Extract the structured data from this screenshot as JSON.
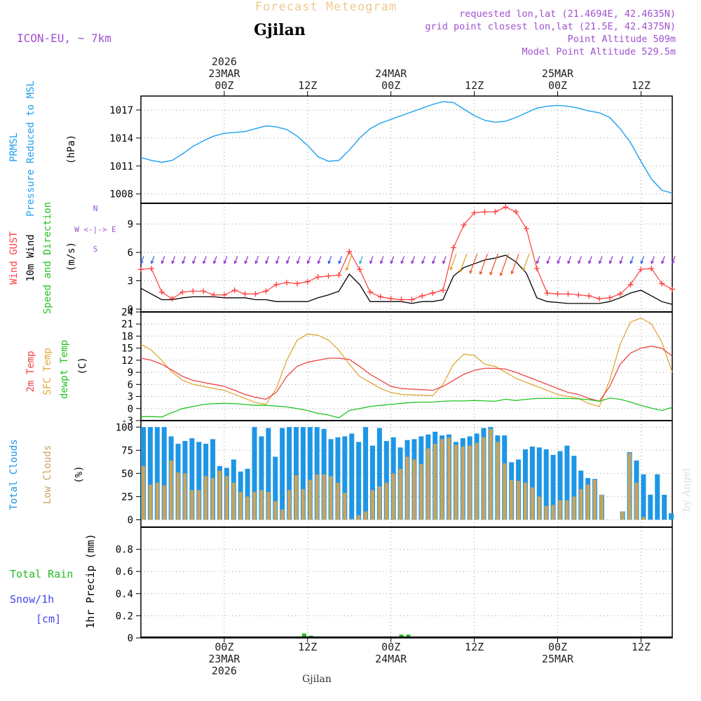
{
  "header": {
    "supertitle": "Forecast Meteogram",
    "location": "Gjilan",
    "model": "ICON-EU, ~ 7km",
    "requested": "requested lon,lat (21.4694E, 42.4635N)",
    "grid": "grid point closest lon,lat (21.5E, 42.4375N)",
    "point_alt": "Point Altitude 509m",
    "model_alt": "Model Point Altitude 529.5m"
  },
  "time_axis": {
    "start": "2026-03-22T12Z",
    "end": "2026-03-25T15Z",
    "top": [
      {
        "hour": 12,
        "lines": [
          "2026",
          "23MAR",
          "00Z"
        ]
      },
      {
        "hour": 24,
        "lines": [
          "12Z"
        ]
      },
      {
        "hour": 36,
        "lines": [
          "24MAR",
          "00Z"
        ]
      },
      {
        "hour": 48,
        "lines": [
          "12Z"
        ]
      },
      {
        "hour": 60,
        "lines": [
          "25MAR",
          "00Z"
        ]
      },
      {
        "hour": 72,
        "lines": [
          "12Z"
        ]
      }
    ],
    "bottom": [
      {
        "hour": 12,
        "lines": [
          "00Z",
          "23MAR",
          "2026"
        ]
      },
      {
        "hour": 24,
        "lines": [
          "12Z"
        ]
      },
      {
        "hour": 36,
        "lines": [
          "00Z",
          "24MAR"
        ]
      },
      {
        "hour": 48,
        "lines": [
          "12Z"
        ]
      },
      {
        "hour": 60,
        "lines": [
          "00Z",
          "25MAR"
        ]
      },
      {
        "hour": 72,
        "lines": [
          "12Z"
        ]
      }
    ],
    "footer": "Gjilan",
    "credit": "by Angel"
  },
  "colors": {
    "pressure": "#1ea0f0",
    "gust": "#ff3c3c",
    "wind": "#000000",
    "temp": "#ee4444",
    "sfc": "#e0a838",
    "dewpt": "#22c422",
    "total_clouds": "#1e96e6",
    "low_clouds": "#c9a45c",
    "rain": "#22bb22",
    "snow": "#4444ee",
    "meta": "#a050d0"
  },
  "panels": {
    "pressure": {
      "labels": [
        "PRMSL",
        "Pressure Reduced to MSL",
        "(hPa)"
      ]
    },
    "wind": {
      "labels": [
        "Wind GUST",
        "10m Wind",
        "Speed and Direction",
        "(m/s)"
      ],
      "compass": [
        "N",
        "W <-|-> E",
        "S"
      ]
    },
    "temp": {
      "labels": [
        "2m Temp",
        "SFC Temp",
        "dewpt Temp",
        "(C)"
      ]
    },
    "clouds": {
      "labels": [
        "Total Clouds",
        "Low Clouds",
        "(%)"
      ]
    },
    "precip": {
      "labels": [
        "Total  Rain",
        "Snow/1h",
        "[cm]",
        "1hr Precip (mm)"
      ]
    }
  },
  "chart_data": [
    {
      "type": "line",
      "title": "PRMSL Pressure Reduced to MSL",
      "ylabel": "(hPa)",
      "ylim": [
        1007,
        1018.5
      ],
      "yticks": [
        1008,
        1011,
        1014,
        1017
      ],
      "x_hours": [
        0,
        1.5,
        3,
        4.5,
        6,
        7.5,
        9,
        10.5,
        12,
        13.5,
        15,
        16.5,
        18,
        19.5,
        21,
        22.5,
        24,
        25.5,
        27,
        28.5,
        30,
        31.5,
        33,
        34.5,
        36,
        37.5,
        39,
        40.5,
        42,
        43.5,
        45,
        46.5,
        48,
        49.5,
        51,
        52.5,
        54,
        55.5,
        57,
        58.5,
        60,
        61.5,
        63,
        64.5,
        66,
        67.5,
        69,
        70.5,
        72,
        73.5,
        75,
        76.5
      ],
      "series": [
        {
          "name": "PRMSL",
          "values": [
            1011.9,
            1011.6,
            1011.4,
            1011.6,
            1012.3,
            1013.1,
            1013.7,
            1014.2,
            1014.5,
            1014.6,
            1014.7,
            1015.0,
            1015.3,
            1015.2,
            1014.9,
            1014.2,
            1013.2,
            1012.0,
            1011.5,
            1011.6,
            1012.7,
            1014.0,
            1015.0,
            1015.6,
            1016.0,
            1016.4,
            1016.8,
            1017.2,
            1017.6,
            1017.9,
            1017.8,
            1017.1,
            1016.4,
            1015.9,
            1015.7,
            1015.8,
            1016.2,
            1016.7,
            1017.2,
            1017.4,
            1017.5,
            1017.4,
            1017.2,
            1016.9,
            1016.7,
            1016.2,
            1015.0,
            1013.5,
            1011.5,
            1009.6,
            1008.4,
            1008.1
          ]
        }
      ]
    },
    {
      "type": "line",
      "title": "Wind GUST / 10m Wind Speed and Direction",
      "ylabel": "(m/s)",
      "ylim": [
        -0.3,
        11.2
      ],
      "yticks": [
        0,
        3,
        6,
        9
      ],
      "x_hours": [
        0,
        1.5,
        3,
        4.5,
        6,
        7.5,
        9,
        10.5,
        12,
        13.5,
        15,
        16.5,
        18,
        19.5,
        21,
        22.5,
        24,
        25.5,
        27,
        28.5,
        30,
        31.5,
        33,
        34.5,
        36,
        37.5,
        39,
        40.5,
        42,
        43.5,
        45,
        46.5,
        48,
        49.5,
        51,
        52.5,
        54,
        55.5,
        57,
        58.5,
        60,
        61.5,
        63,
        64.5,
        66,
        67.5,
        69,
        70.5,
        72,
        73.5,
        75,
        76.5
      ],
      "series": [
        {
          "name": "Wind GUST",
          "values": [
            4.2,
            4.3,
            1.8,
            1.1,
            1.8,
            1.9,
            1.9,
            1.5,
            1.5,
            2.0,
            1.6,
            1.6,
            1.9,
            2.6,
            2.8,
            2.7,
            2.9,
            3.4,
            3.5,
            3.6,
            6.1,
            4.2,
            1.8,
            1.3,
            1.1,
            1.0,
            1.0,
            1.4,
            1.7,
            2.0,
            6.5,
            8.9,
            10.2,
            10.3,
            10.3,
            10.8,
            10.3,
            8.5,
            4.3,
            1.7,
            1.6,
            1.6,
            1.5,
            1.4,
            1.1,
            1.2,
            1.6,
            2.6,
            4.2,
            4.3,
            2.7,
            2.1
          ]
        },
        {
          "name": "10m Wind",
          "values": [
            2.2,
            1.6,
            1.0,
            1.0,
            1.2,
            1.3,
            1.3,
            1.3,
            1.2,
            1.2,
            1.2,
            1.0,
            1.0,
            0.8,
            0.8,
            0.8,
            0.8,
            1.2,
            1.5,
            1.9,
            3.7,
            2.6,
            0.8,
            0.8,
            0.8,
            0.8,
            0.6,
            0.8,
            0.8,
            1.0,
            3.5,
            4.4,
            4.8,
            5.2,
            5.4,
            5.7,
            5.0,
            3.8,
            1.2,
            0.8,
            0.7,
            0.6,
            0.6,
            0.6,
            0.6,
            0.8,
            1.2,
            1.7,
            2.0,
            1.4,
            0.8,
            0.5
          ]
        },
        {
          "name": "Direction",
          "values": [
            380,
            381,
            381,
            381,
            381,
            381,
            381,
            381,
            381,
            381,
            381,
            380,
            381,
            381,
            381,
            380,
            381,
            380,
            380,
            380,
            379,
            380,
            380,
            380,
            381,
            381,
            381,
            381,
            380,
            380,
            380,
            380,
            380,
            380,
            380,
            380,
            380,
            380,
            381,
            381,
            381,
            381,
            381,
            381,
            381,
            381,
            381,
            381,
            380,
            380,
            380,
            380
          ]
        }
      ]
    },
    {
      "type": "line",
      "title": "2m Temp / SFC Temp / dewpt Temp",
      "ylabel": "(C)",
      "ylim": [
        -3,
        24
      ],
      "yticks": [
        -3,
        0,
        3,
        6,
        9,
        12,
        15,
        18,
        21,
        24
      ],
      "x_hours": [
        0,
        1.5,
        3,
        4.5,
        6,
        7.5,
        9,
        10.5,
        12,
        13.5,
        15,
        16.5,
        18,
        19.5,
        21,
        22.5,
        24,
        25.5,
        27,
        28.5,
        30,
        31.5,
        33,
        34.5,
        36,
        37.5,
        39,
        40.5,
        42,
        43.5,
        45,
        46.5,
        48,
        49.5,
        51,
        52.5,
        54,
        55.5,
        57,
        58.5,
        60,
        61.5,
        63,
        64.5,
        66,
        67.5,
        69,
        70.5,
        72,
        73.5,
        75,
        76.5
      ],
      "series": [
        {
          "name": "2m Temp",
          "values": [
            12.5,
            12.0,
            11.0,
            9.5,
            8.0,
            7.0,
            6.5,
            6.0,
            5.5,
            4.5,
            3.5,
            2.8,
            2.3,
            4.0,
            8.0,
            10.5,
            11.5,
            12.0,
            12.5,
            12.5,
            12.2,
            10.5,
            8.5,
            7.0,
            5.5,
            5.0,
            4.8,
            4.7,
            4.5,
            5.5,
            7.0,
            8.5,
            9.5,
            10.0,
            10.0,
            9.8,
            9.0,
            8.0,
            7.0,
            6.0,
            5.0,
            4.0,
            3.5,
            2.5,
            1.8,
            5.5,
            11.0,
            13.8,
            15.0,
            15.5,
            15.0,
            13.0
          ]
        },
        {
          "name": "SFC Temp",
          "values": [
            16.0,
            14.5,
            12.0,
            9.0,
            7.0,
            6.0,
            5.5,
            5.0,
            4.5,
            3.5,
            2.5,
            1.5,
            1.0,
            5.0,
            12.0,
            17.0,
            18.5,
            18.2,
            17.0,
            14.5,
            11.0,
            8.0,
            6.5,
            5.0,
            4.0,
            3.5,
            3.4,
            3.3,
            3.2,
            6.0,
            11.0,
            13.5,
            13.2,
            11.0,
            10.5,
            9.0,
            7.5,
            6.5,
            5.5,
            4.5,
            3.5,
            3.0,
            2.5,
            1.2,
            0.5,
            7.0,
            16.0,
            21.5,
            22.5,
            21.0,
            16.5,
            9.0
          ]
        },
        {
          "name": "dewpt Temp",
          "values": [
            -2.0,
            -2.0,
            -2.1,
            -1.0,
            0.0,
            0.5,
            1.0,
            1.2,
            1.3,
            1.2,
            1.0,
            0.8,
            0.8,
            0.6,
            0.4,
            0.0,
            -0.5,
            -1.2,
            -1.6,
            -2.3,
            -0.5,
            0.0,
            0.5,
            0.8,
            1.0,
            1.3,
            1.5,
            1.6,
            1.6,
            1.8,
            1.9,
            1.9,
            2.0,
            1.9,
            1.8,
            2.3,
            2.0,
            2.3,
            2.5,
            2.5,
            2.5,
            2.5,
            2.4,
            2.2,
            1.8,
            2.6,
            2.3,
            1.6,
            0.8,
            0.1,
            -0.5,
            0.3
          ]
        }
      ]
    },
    {
      "type": "bar",
      "title": "Total Clouds / Low Clouds",
      "ylabel": "(%)",
      "ylim": [
        -8,
        107
      ],
      "yticks": [
        0,
        25,
        50,
        75,
        100
      ],
      "x_hours": [
        0,
        1,
        2,
        3,
        4,
        5,
        6,
        7,
        8,
        9,
        10,
        11,
        12,
        13,
        14,
        15,
        16,
        17,
        18,
        19,
        20,
        21,
        22,
        23,
        24,
        25,
        26,
        27,
        28,
        29,
        30,
        31,
        32,
        33,
        34,
        35,
        36,
        37,
        38,
        39,
        40,
        41,
        42,
        43,
        44,
        45,
        46,
        47,
        48,
        49,
        50,
        51,
        52,
        53,
        54,
        55,
        56,
        57,
        58,
        59,
        60,
        61,
        62,
        63,
        64,
        65,
        66,
        67,
        68,
        69,
        70,
        71,
        72,
        73,
        74,
        75,
        76
      ],
      "series": [
        {
          "name": "Total Clouds",
          "values": [
            100,
            100,
            100,
            100,
            90,
            82,
            85,
            88,
            84,
            82,
            87,
            58,
            56,
            65,
            52,
            55,
            100,
            90,
            99,
            68,
            99,
            100,
            100,
            100,
            100,
            100,
            98,
            87,
            89,
            90,
            93,
            84,
            100,
            80,
            99,
            85,
            89,
            78,
            86,
            87,
            90,
            92,
            95,
            91,
            92,
            84,
            88,
            90,
            93,
            99,
            100,
            91,
            91,
            62,
            65,
            76,
            79,
            78,
            76,
            70,
            74,
            80,
            69,
            53,
            45,
            44,
            27,
            0,
            0,
            9,
            73,
            64,
            49,
            27,
            49,
            27,
            7
          ]
        },
        {
          "name": "Low Clouds",
          "values": [
            58,
            38,
            40,
            37,
            64,
            51,
            50,
            32,
            32,
            47,
            45,
            53,
            47,
            40,
            30,
            25,
            30,
            32,
            30,
            20,
            11,
            32,
            48,
            33,
            43,
            49,
            49,
            47,
            40,
            29,
            1,
            5,
            9,
            32,
            36,
            40,
            50,
            55,
            68,
            65,
            60,
            77,
            82,
            87,
            89,
            81,
            79,
            80,
            83,
            89,
            98,
            84,
            61,
            43,
            42,
            40,
            35,
            25,
            15,
            16,
            21,
            21,
            25,
            33,
            38,
            43,
            27,
            0,
            0,
            9,
            72,
            40,
            3,
            0,
            0,
            0,
            0
          ]
        }
      ]
    },
    {
      "type": "bar",
      "title": "1hr Precip",
      "ylabel": "1hr Precip (mm)",
      "ylim": [
        0,
        1.0
      ],
      "yticks": [
        0,
        0.2,
        0.4,
        0.6,
        0.8
      ],
      "x_hours": [
        12,
        23.5,
        24.5,
        37.5,
        38.5,
        48.5
      ],
      "series": [
        {
          "name": "Total Rain",
          "values": [
            0.01,
            0.04,
            0.02,
            0.03,
            0.03,
            0.005
          ]
        },
        {
          "name": "Snow/1h",
          "values": [
            0,
            0,
            0,
            0,
            0,
            0
          ]
        }
      ]
    }
  ]
}
